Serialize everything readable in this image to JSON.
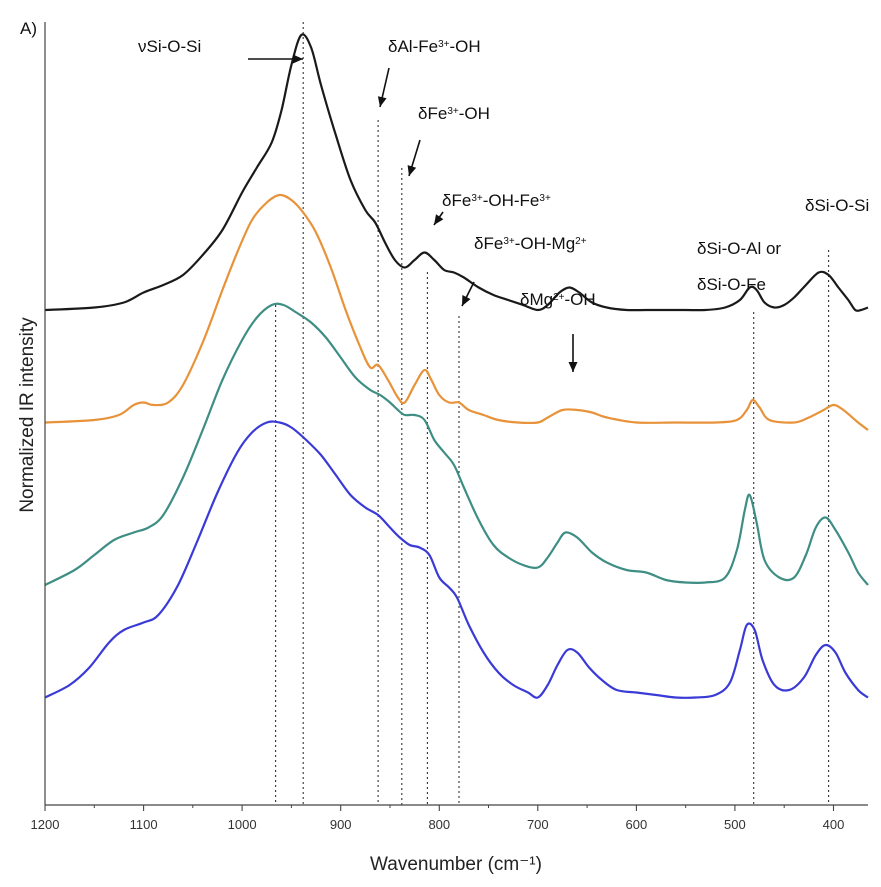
{
  "chart_data": {
    "type": "line",
    "panel_label": "A)",
    "xlabel": "Wavenumber (cm⁻¹)",
    "ylabel": "Normalized IR intensity",
    "xlim": [
      1200,
      365
    ],
    "x_reversed": true,
    "xticks": [
      1200,
      1100,
      1000,
      900,
      800,
      700,
      600,
      500,
      400
    ],
    "grid": false,
    "series": [
      {
        "color": "#1a1a1a",
        "points": [
          [
            1200,
            0.4
          ],
          [
            1150,
            0.41
          ],
          [
            1120,
            0.43
          ],
          [
            1100,
            0.47
          ],
          [
            1080,
            0.5
          ],
          [
            1060,
            0.54
          ],
          [
            1040,
            0.62
          ],
          [
            1020,
            0.72
          ],
          [
            1000,
            0.87
          ],
          [
            985,
            0.97
          ],
          [
            970,
            1.07
          ],
          [
            960,
            1.2
          ],
          [
            950,
            1.38
          ],
          [
            940,
            1.5
          ],
          [
            930,
            1.45
          ],
          [
            920,
            1.3
          ],
          [
            905,
            1.1
          ],
          [
            890,
            0.92
          ],
          [
            875,
            0.8
          ],
          [
            865,
            0.75
          ],
          [
            855,
            0.67
          ],
          [
            845,
            0.6
          ],
          [
            835,
            0.57
          ],
          [
            825,
            0.6
          ],
          [
            815,
            0.63
          ],
          [
            805,
            0.6
          ],
          [
            795,
            0.56
          ],
          [
            785,
            0.55
          ],
          [
            775,
            0.53
          ],
          [
            760,
            0.49
          ],
          [
            745,
            0.46
          ],
          [
            730,
            0.44
          ],
          [
            715,
            0.42
          ],
          [
            700,
            0.4
          ],
          [
            690,
            0.42
          ],
          [
            678,
            0.47
          ],
          [
            668,
            0.49
          ],
          [
            658,
            0.47
          ],
          [
            645,
            0.43
          ],
          [
            630,
            0.41
          ],
          [
            610,
            0.4
          ],
          [
            590,
            0.4
          ],
          [
            570,
            0.4
          ],
          [
            550,
            0.4
          ],
          [
            530,
            0.4
          ],
          [
            510,
            0.41
          ],
          [
            495,
            0.44
          ],
          [
            485,
            0.49
          ],
          [
            478,
            0.48
          ],
          [
            470,
            0.43
          ],
          [
            460,
            0.41
          ],
          [
            450,
            0.42
          ],
          [
            440,
            0.45
          ],
          [
            428,
            0.5
          ],
          [
            415,
            0.55
          ],
          [
            405,
            0.54
          ],
          [
            395,
            0.49
          ],
          [
            385,
            0.44
          ],
          [
            378,
            0.4
          ],
          [
            372,
            0.4
          ],
          [
            365,
            0.41
          ]
        ]
      },
      {
        "color": "#e8923a",
        "points": [
          [
            1200,
            -0.05
          ],
          [
            1150,
            -0.04
          ],
          [
            1125,
            -0.02
          ],
          [
            1110,
            0.02
          ],
          [
            1100,
            0.03
          ],
          [
            1090,
            0.02
          ],
          [
            1075,
            0.03
          ],
          [
            1060,
            0.1
          ],
          [
            1040,
            0.27
          ],
          [
            1020,
            0.48
          ],
          [
            1005,
            0.63
          ],
          [
            990,
            0.76
          ],
          [
            975,
            0.83
          ],
          [
            962,
            0.86
          ],
          [
            950,
            0.84
          ],
          [
            938,
            0.79
          ],
          [
            925,
            0.71
          ],
          [
            910,
            0.57
          ],
          [
            895,
            0.4
          ],
          [
            880,
            0.25
          ],
          [
            870,
            0.17
          ],
          [
            862,
            0.18
          ],
          [
            852,
            0.12
          ],
          [
            842,
            0.05
          ],
          [
            835,
            0.03
          ],
          [
            825,
            0.1
          ],
          [
            815,
            0.16
          ],
          [
            808,
            0.12
          ],
          [
            800,
            0.06
          ],
          [
            790,
            0.03
          ],
          [
            780,
            0.03
          ],
          [
            770,
            0.0
          ],
          [
            755,
            -0.02
          ],
          [
            740,
            -0.04
          ],
          [
            720,
            -0.05
          ],
          [
            700,
            -0.05
          ],
          [
            690,
            -0.03
          ],
          [
            675,
            0.0
          ],
          [
            660,
            0.0
          ],
          [
            645,
            -0.01
          ],
          [
            630,
            -0.03
          ],
          [
            600,
            -0.05
          ],
          [
            560,
            -0.05
          ],
          [
            520,
            -0.05
          ],
          [
            498,
            -0.04
          ],
          [
            488,
            0.0
          ],
          [
            482,
            0.04
          ],
          [
            475,
            0.01
          ],
          [
            465,
            -0.04
          ],
          [
            440,
            -0.05
          ],
          [
            425,
            -0.03
          ],
          [
            410,
            0.0
          ],
          [
            400,
            0.02
          ],
          [
            390,
            0.0
          ],
          [
            375,
            -0.05
          ],
          [
            365,
            -0.08
          ]
        ]
      },
      {
        "color": "#3e8e84",
        "points": [
          [
            1200,
            -0.7
          ],
          [
            1170,
            -0.64
          ],
          [
            1150,
            -0.58
          ],
          [
            1130,
            -0.52
          ],
          [
            1110,
            -0.49
          ],
          [
            1095,
            -0.47
          ],
          [
            1080,
            -0.42
          ],
          [
            1060,
            -0.27
          ],
          [
            1040,
            -0.08
          ],
          [
            1020,
            0.12
          ],
          [
            1000,
            0.28
          ],
          [
            985,
            0.37
          ],
          [
            970,
            0.42
          ],
          [
            958,
            0.42
          ],
          [
            945,
            0.39
          ],
          [
            930,
            0.35
          ],
          [
            915,
            0.29
          ],
          [
            900,
            0.21
          ],
          [
            885,
            0.13
          ],
          [
            870,
            0.08
          ],
          [
            860,
            0.06
          ],
          [
            850,
            0.03
          ],
          [
            842,
            0.0
          ],
          [
            835,
            -0.02
          ],
          [
            825,
            -0.02
          ],
          [
            815,
            -0.04
          ],
          [
            805,
            -0.12
          ],
          [
            795,
            -0.17
          ],
          [
            785,
            -0.22
          ],
          [
            775,
            -0.31
          ],
          [
            760,
            -0.44
          ],
          [
            745,
            -0.54
          ],
          [
            730,
            -0.59
          ],
          [
            715,
            -0.62
          ],
          [
            700,
            -0.63
          ],
          [
            690,
            -0.59
          ],
          [
            680,
            -0.53
          ],
          [
            672,
            -0.49
          ],
          [
            660,
            -0.51
          ],
          [
            645,
            -0.57
          ],
          [
            630,
            -0.61
          ],
          [
            610,
            -0.64
          ],
          [
            590,
            -0.65
          ],
          [
            570,
            -0.68
          ],
          [
            550,
            -0.69
          ],
          [
            530,
            -0.69
          ],
          [
            510,
            -0.67
          ],
          [
            498,
            -0.56
          ],
          [
            490,
            -0.4
          ],
          [
            485,
            -0.34
          ],
          [
            478,
            -0.45
          ],
          [
            470,
            -0.6
          ],
          [
            455,
            -0.67
          ],
          [
            440,
            -0.67
          ],
          [
            428,
            -0.58
          ],
          [
            418,
            -0.47
          ],
          [
            408,
            -0.43
          ],
          [
            398,
            -0.48
          ],
          [
            385,
            -0.57
          ],
          [
            375,
            -0.65
          ],
          [
            365,
            -0.7
          ]
        ]
      },
      {
        "color": "#3a3ad6",
        "points": [
          [
            1200,
            -1.15
          ],
          [
            1175,
            -1.1
          ],
          [
            1155,
            -1.03
          ],
          [
            1135,
            -0.93
          ],
          [
            1120,
            -0.88
          ],
          [
            1100,
            -0.85
          ],
          [
            1085,
            -0.82
          ],
          [
            1065,
            -0.7
          ],
          [
            1045,
            -0.52
          ],
          [
            1025,
            -0.33
          ],
          [
            1005,
            -0.17
          ],
          [
            990,
            -0.09
          ],
          [
            975,
            -0.05
          ],
          [
            962,
            -0.05
          ],
          [
            950,
            -0.07
          ],
          [
            935,
            -0.12
          ],
          [
            920,
            -0.18
          ],
          [
            905,
            -0.26
          ],
          [
            890,
            -0.34
          ],
          [
            875,
            -0.39
          ],
          [
            862,
            -0.42
          ],
          [
            850,
            -0.47
          ],
          [
            840,
            -0.51
          ],
          [
            830,
            -0.54
          ],
          [
            820,
            -0.55
          ],
          [
            810,
            -0.58
          ],
          [
            800,
            -0.67
          ],
          [
            790,
            -0.71
          ],
          [
            782,
            -0.75
          ],
          [
            770,
            -0.86
          ],
          [
            755,
            -0.97
          ],
          [
            740,
            -1.05
          ],
          [
            725,
            -1.1
          ],
          [
            710,
            -1.13
          ],
          [
            700,
            -1.15
          ],
          [
            690,
            -1.1
          ],
          [
            680,
            -1.02
          ],
          [
            670,
            -0.96
          ],
          [
            660,
            -0.97
          ],
          [
            648,
            -1.03
          ],
          [
            635,
            -1.08
          ],
          [
            620,
            -1.12
          ],
          [
            600,
            -1.13
          ],
          [
            580,
            -1.14
          ],
          [
            560,
            -1.15
          ],
          [
            540,
            -1.15
          ],
          [
            520,
            -1.14
          ],
          [
            505,
            -1.09
          ],
          [
            495,
            -0.96
          ],
          [
            488,
            -0.86
          ],
          [
            480,
            -0.88
          ],
          [
            472,
            -1.0
          ],
          [
            460,
            -1.1
          ],
          [
            445,
            -1.12
          ],
          [
            430,
            -1.07
          ],
          [
            418,
            -0.98
          ],
          [
            408,
            -0.94
          ],
          [
            398,
            -0.97
          ],
          [
            388,
            -1.05
          ],
          [
            375,
            -1.12
          ],
          [
            365,
            -1.15
          ]
        ]
      }
    ],
    "vlines": [
      966,
      938,
      862,
      838,
      812,
      780,
      481,
      405
    ],
    "annotations": [
      {
        "parts": [
          [
            "νSi-O-Si",
            ""
          ]
        ]
      },
      {
        "parts": [
          [
            "δAl-Fe",
            ""
          ],
          [
            "3+",
            "sup"
          ],
          [
            "-OH",
            ""
          ]
        ]
      },
      {
        "parts": [
          [
            "δFe",
            ""
          ],
          [
            "3+",
            "sup"
          ],
          [
            "-OH",
            ""
          ]
        ]
      },
      {
        "parts": [
          [
            "δFe",
            ""
          ],
          [
            "3+",
            "sup"
          ],
          [
            "-OH-Fe",
            ""
          ],
          [
            "3+",
            "sup"
          ]
        ]
      },
      {
        "parts": [
          [
            "δFe",
            ""
          ],
          [
            "3+",
            "sup"
          ],
          [
            "-OH-Mg",
            ""
          ],
          [
            "2+",
            "sup"
          ]
        ]
      },
      {
        "parts": [
          [
            "δMg",
            ""
          ],
          [
            "2+",
            "sup"
          ],
          [
            "-OH",
            ""
          ]
        ]
      },
      {
        "parts": [
          [
            "δSi-O-Al or",
            ""
          ]
        ]
      },
      {
        "parts": [
          [
            "δSi-O-Fe",
            ""
          ]
        ]
      },
      {
        "parts": [
          [
            "δSi-O-Si",
            ""
          ]
        ]
      }
    ]
  }
}
